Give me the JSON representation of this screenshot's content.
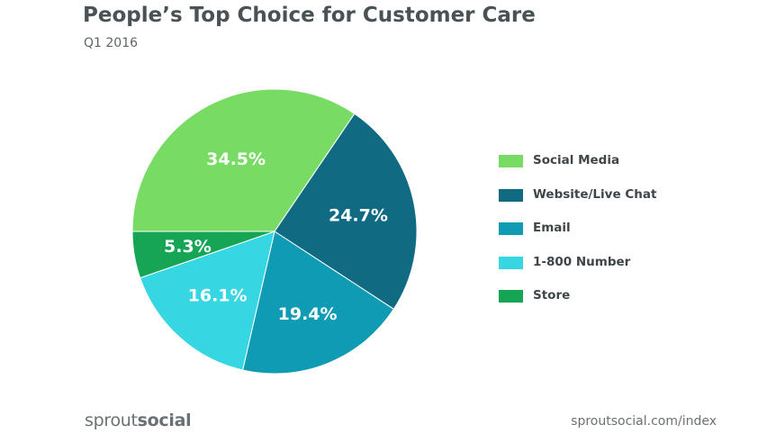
{
  "header": {
    "title": "People’s Top Choice for Customer Care",
    "subtitle": "Q1 2016"
  },
  "footer": {
    "brand_light": "sprout",
    "brand_bold": "social",
    "url": "sproutsocial.com/index"
  },
  "chart_data": {
    "type": "pie",
    "title": "People’s Top Choice for Customer Care",
    "subtitle": "Q1 2016",
    "legend_position": "right",
    "slices": [
      {
        "label": "Social Media",
        "value": 34.5,
        "display": "34.5%",
        "color": "#78db63"
      },
      {
        "label": "Website/Live Chat",
        "value": 24.7,
        "display": "24.7%",
        "color": "#106b82"
      },
      {
        "label": "Email",
        "value": 19.4,
        "display": "19.4%",
        "color": "#0e9bb3"
      },
      {
        "label": "1-800 Number",
        "value": 16.1,
        "display": "16.1%",
        "color": "#36d6e3"
      },
      {
        "label": "Store",
        "value": 5.3,
        "display": "5.3%",
        "color": "#16a455"
      }
    ]
  }
}
